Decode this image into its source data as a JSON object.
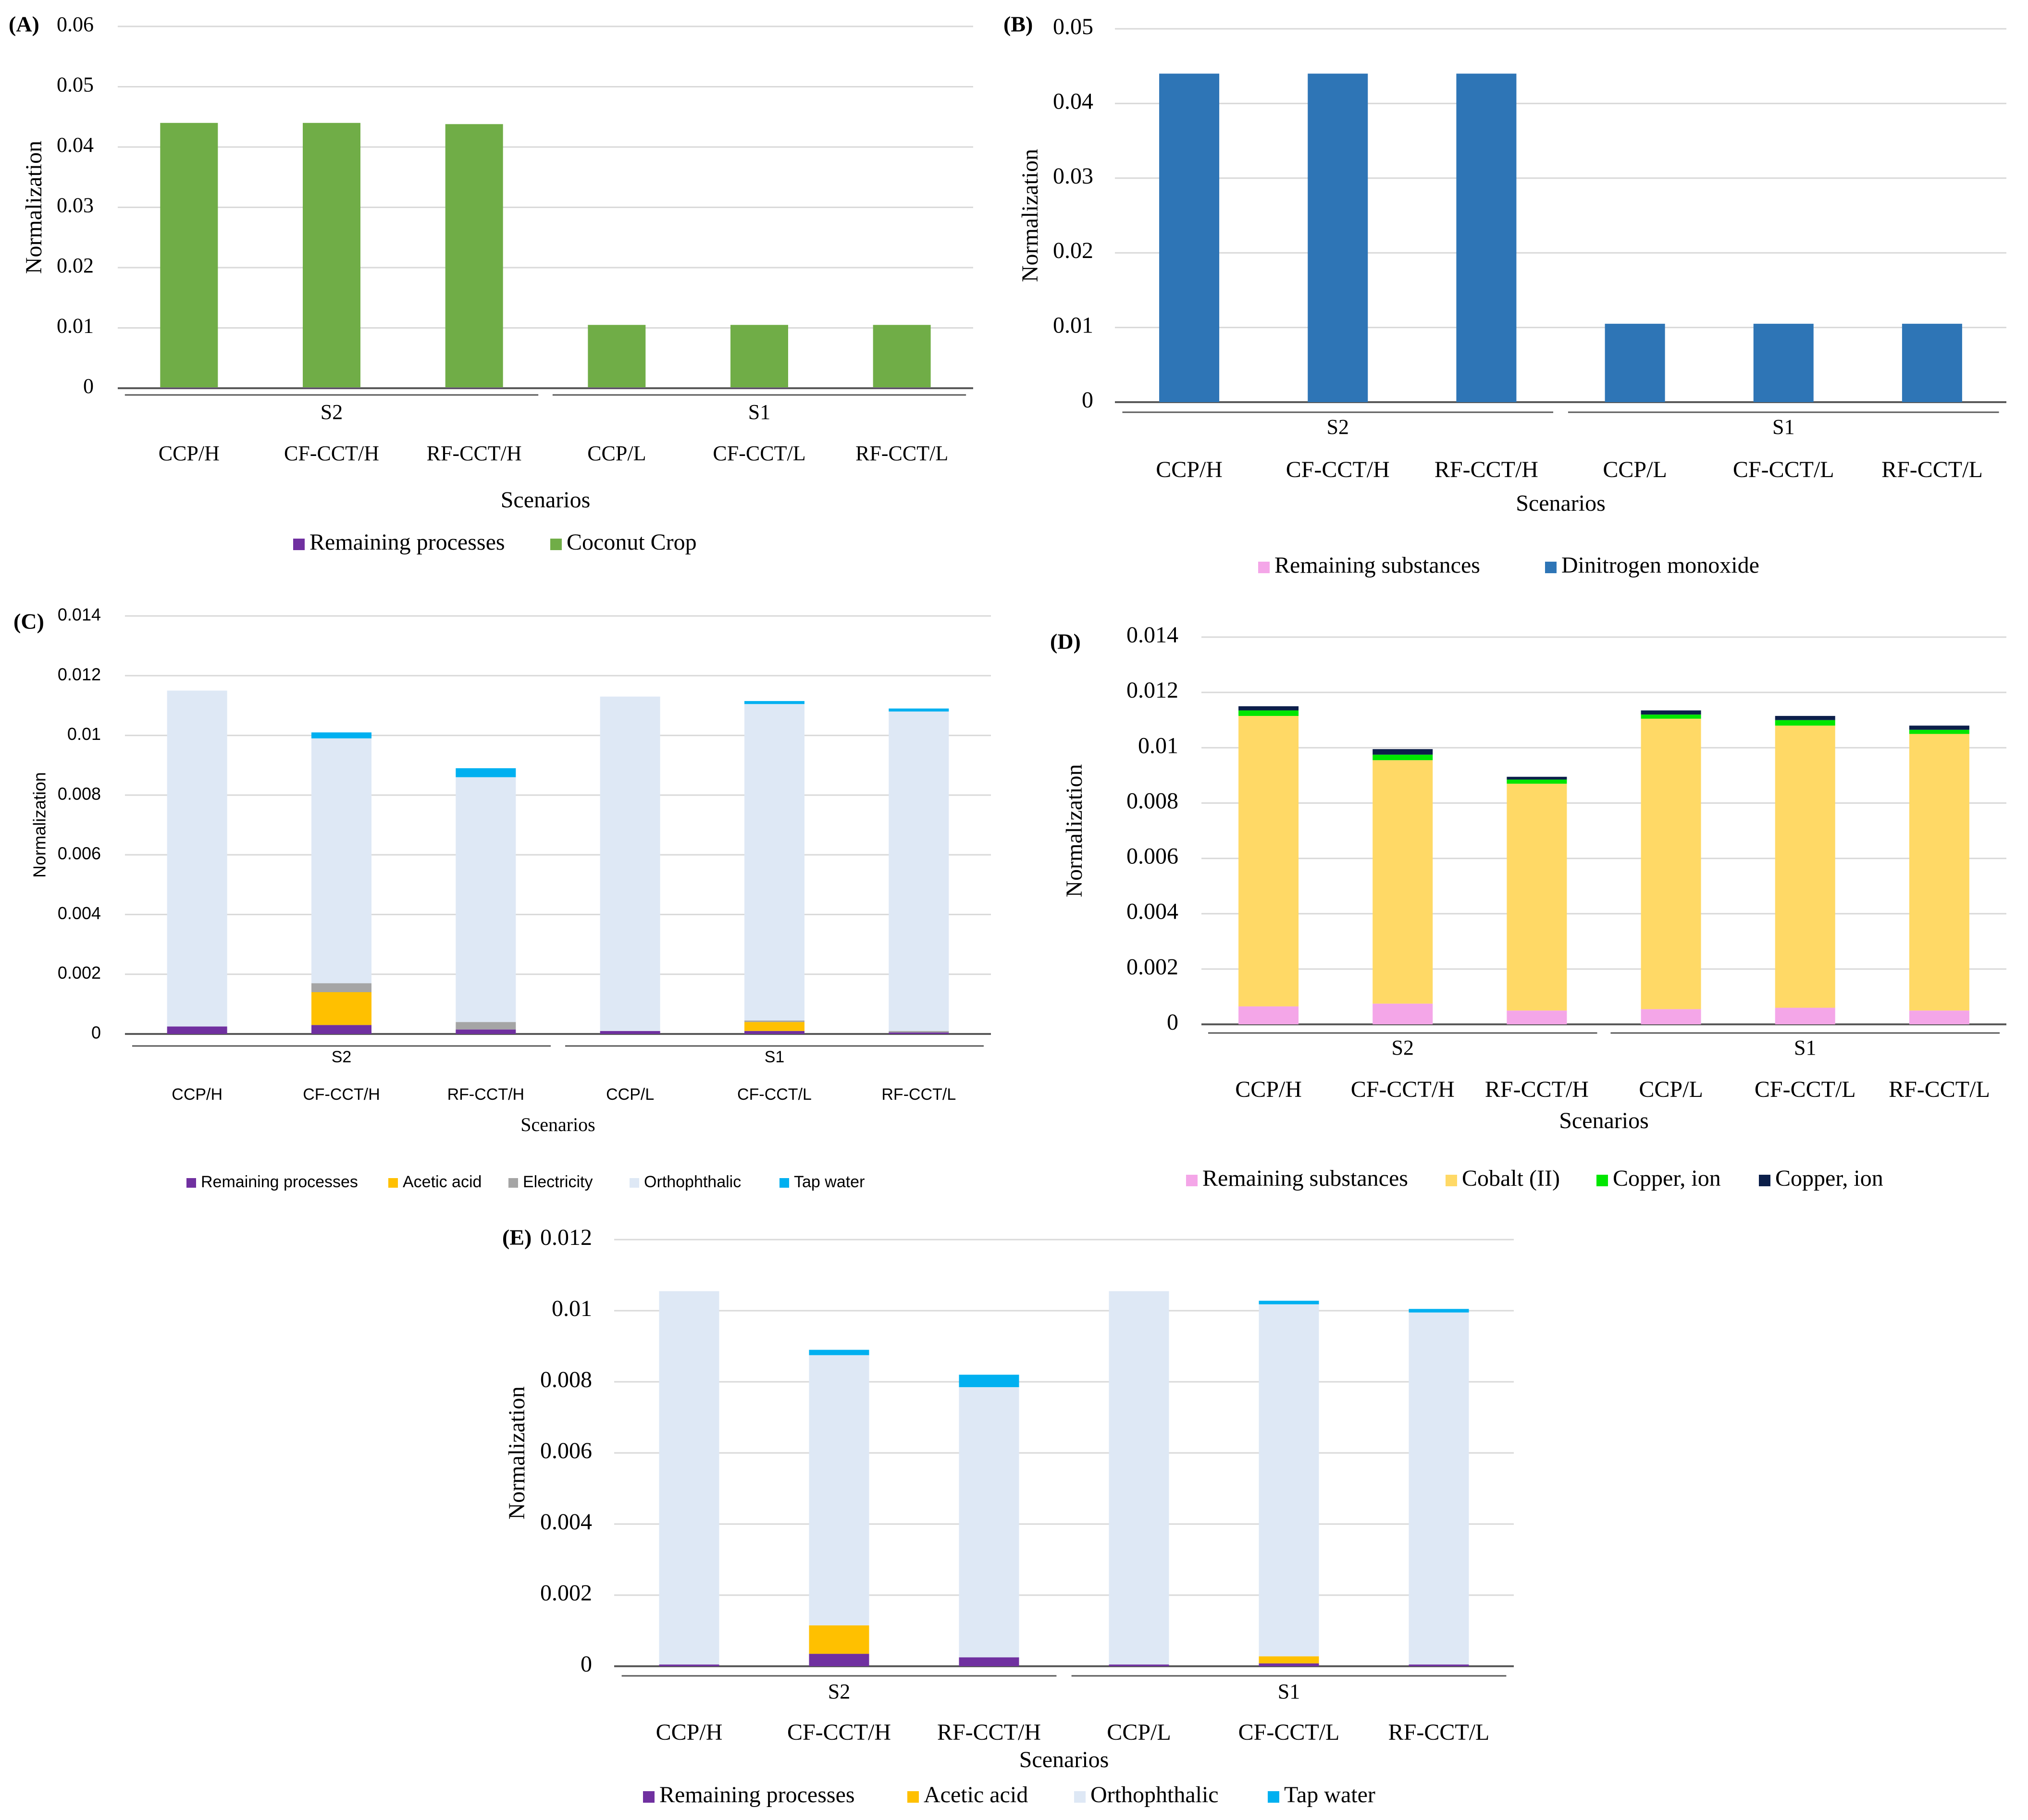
{
  "colors": {
    "grid": "#d9d9d9",
    "axis": "#595959",
    "text": "#000000"
  },
  "chart_data": [
    {
      "id": "A",
      "panel_label": "(A)",
      "type": "bar",
      "stacked": true,
      "ylabel": "Normalization",
      "xlabel": "Scenarios",
      "ylim": [
        0,
        0.06
      ],
      "yticks": [
        0,
        0.01,
        0.02,
        0.03,
        0.04,
        0.05,
        0.06
      ],
      "ytick_labels": [
        "0",
        "0.01",
        "0.02",
        "0.03",
        "0.04",
        "0.05",
        "0.06"
      ],
      "categories": [
        "CCP/H",
        "CF-CCT/H",
        "RF-CCT/H",
        "CCP/L",
        "CF-CCT/L",
        "RF-CCT/L"
      ],
      "groups": [
        {
          "label": "S2",
          "from": 0,
          "to": 2
        },
        {
          "label": "S1",
          "from": 3,
          "to": 5
        }
      ],
      "series": [
        {
          "name": "Remaining processes",
          "color": "#7030a0",
          "values": [
            0.0001,
            0.0001,
            0.0001,
            0.0001,
            0.0001,
            0.0001
          ]
        },
        {
          "name": "Coconut Crop",
          "color": "#70ad47",
          "values": [
            0.0439,
            0.0439,
            0.0437,
            0.0104,
            0.0104,
            0.0104
          ]
        }
      ],
      "legend": "bottom"
    },
    {
      "id": "B",
      "panel_label": "(B)",
      "type": "bar",
      "stacked": true,
      "ylabel": "Normalization",
      "xlabel": "Scenarios",
      "ylim": [
        0,
        0.05
      ],
      "yticks": [
        0,
        0.01,
        0.02,
        0.03,
        0.04,
        0.05
      ],
      "ytick_labels": [
        "0",
        "0.01",
        "0.02",
        "0.03",
        "0.04",
        "0.05"
      ],
      "categories": [
        "CCP/H",
        "CF-CCT/H",
        "RF-CCT/H",
        "CCP/L",
        "CF-CCT/L",
        "RF-CCT/L"
      ],
      "groups": [
        {
          "label": "S2",
          "from": 0,
          "to": 2
        },
        {
          "label": "S1",
          "from": 3,
          "to": 5
        }
      ],
      "series": [
        {
          "name": "Remaining substances",
          "color": "#f4a6e8",
          "values": [
            0,
            0,
            0,
            0,
            0,
            0
          ]
        },
        {
          "name": "Dinitrogen monoxide",
          "color": "#2e75b6",
          "values": [
            0.044,
            0.044,
            0.044,
            0.0105,
            0.0105,
            0.0105
          ]
        }
      ],
      "legend": "bottom"
    },
    {
      "id": "C",
      "panel_label": "(C)",
      "type": "bar",
      "stacked": true,
      "ylabel": "Normalization",
      "xlabel": "Scenarios",
      "ylim": [
        0,
        0.014
      ],
      "yticks": [
        0,
        0.002,
        0.004,
        0.006,
        0.008,
        0.01,
        0.012,
        0.014
      ],
      "ytick_labels": [
        "0",
        "0.002",
        "0.004",
        "0.006",
        "0.008",
        "0.01",
        "0.012",
        "0.014"
      ],
      "categories": [
        "CCP/H",
        "CF-CCT/H",
        "RF-CCT/H",
        "CCP/L",
        "CF-CCT/L",
        "RF-CCT/L"
      ],
      "groups": [
        {
          "label": "S2",
          "from": 0,
          "to": 2
        },
        {
          "label": "S1",
          "from": 3,
          "to": 5
        }
      ],
      "series": [
        {
          "name": "Remaining processes",
          "color": "#7030a0",
          "values": [
            0.00025,
            0.0003,
            0.00015,
            0.0001,
            0.0001,
            5e-05
          ]
        },
        {
          "name": "Acetic acid",
          "color": "#ffc000",
          "values": [
            0,
            0.0011,
            0,
            0,
            0.0003,
            0
          ]
        },
        {
          "name": "Electricity",
          "color": "#a5a5a5",
          "values": [
            0,
            0.0003,
            0.00025,
            0,
            5e-05,
            5e-05
          ]
        },
        {
          "name": "Orthophthalic",
          "color": "#dee8f5",
          "values": [
            0.01125,
            0.0082,
            0.0082,
            0.0112,
            0.0106,
            0.0107
          ]
        },
        {
          "name": "Tap water",
          "color": "#00b0f0",
          "values": [
            0,
            0.0002,
            0.0003,
            0,
            0.0001,
            0.0001
          ]
        }
      ],
      "legend": "bottom"
    },
    {
      "id": "D",
      "panel_label": "(D)",
      "type": "bar",
      "stacked": true,
      "ylabel": "Normalization",
      "xlabel": "Scenarios",
      "ylim": [
        0,
        0.014
      ],
      "yticks": [
        0,
        0.002,
        0.004,
        0.006,
        0.008,
        0.01,
        0.012,
        0.014
      ],
      "ytick_labels": [
        "0",
        "0.002",
        "0.004",
        "0.006",
        "0.008",
        "0.01",
        "0.012",
        "0.014"
      ],
      "categories": [
        "CCP/H",
        "CF-CCT/H",
        "RF-CCT/H",
        "CCP/L",
        "CF-CCT/L",
        "RF-CCT/L"
      ],
      "groups": [
        {
          "label": "S2",
          "from": 0,
          "to": 2
        },
        {
          "label": "S1",
          "from": 3,
          "to": 5
        }
      ],
      "series": [
        {
          "name": "Remaining substances",
          "color": "#f4a6e8",
          "values": [
            0.00065,
            0.00075,
            0.0005,
            0.00055,
            0.0006,
            0.0005
          ]
        },
        {
          "name": "Cobalt (II)",
          "color": "#ffd966",
          "values": [
            0.0105,
            0.0088,
            0.0082,
            0.0105,
            0.0102,
            0.01
          ]
        },
        {
          "name": "Copper, ion",
          "color": "#00e600",
          "values": [
            0.0002,
            0.0002,
            0.00015,
            0.00015,
            0.0002,
            0.00015
          ]
        },
        {
          "name": "Copper, ion",
          "color": "#0c1f4a",
          "values": [
            0.00015,
            0.0002,
            0.0001,
            0.00015,
            0.00015,
            0.00015
          ]
        }
      ],
      "legend": "bottom"
    },
    {
      "id": "E",
      "panel_label": "(E)",
      "type": "bar",
      "stacked": true,
      "ylabel": "Normalization",
      "xlabel": "Scenarios",
      "ylim": [
        0,
        0.012
      ],
      "yticks": [
        0,
        0.002,
        0.004,
        0.006,
        0.008,
        0.01,
        0.012
      ],
      "ytick_labels": [
        "0",
        "0.002",
        "0.004",
        "0.006",
        "0.008",
        "0.01",
        "0.012"
      ],
      "categories": [
        "CCP/H",
        "CF-CCT/H",
        "RF-CCT/H",
        "CCP/L",
        "CF-CCT/L",
        "RF-CCT/L"
      ],
      "groups": [
        {
          "label": "S2",
          "from": 0,
          "to": 2
        },
        {
          "label": "S1",
          "from": 3,
          "to": 5
        }
      ],
      "series": [
        {
          "name": "Remaining processes",
          "color": "#7030a0",
          "values": [
            5e-05,
            0.00035,
            0.00025,
            5e-05,
            8e-05,
            5e-05
          ]
        },
        {
          "name": "Acetic acid",
          "color": "#ffc000",
          "values": [
            0,
            0.0008,
            0,
            0,
            0.0002,
            0
          ]
        },
        {
          "name": "Orthophthalic",
          "color": "#dee8f5",
          "values": [
            0.0105,
            0.0076,
            0.0076,
            0.0105,
            0.0099,
            0.0099
          ]
        },
        {
          "name": "Tap water",
          "color": "#00b0f0",
          "values": [
            0,
            0.00015,
            0.00035,
            0,
            0.0001,
            0.0001
          ]
        }
      ],
      "legend": "bottom"
    }
  ]
}
